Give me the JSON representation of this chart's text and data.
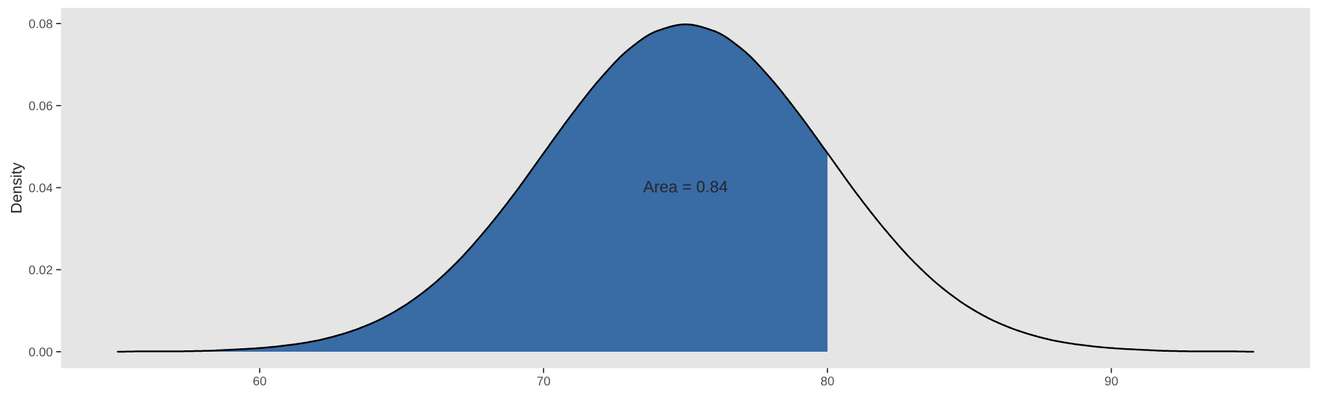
{
  "chart_data": {
    "type": "line",
    "ylabel": "Density",
    "series": [
      {
        "type": "area",
        "color": "#396ba5",
        "x": [
          55,
          56,
          57,
          58,
          59,
          60,
          61,
          62,
          63,
          64,
          65,
          66,
          67,
          68,
          69,
          70,
          71,
          72,
          73,
          74,
          75,
          76,
          77,
          78,
          79,
          80
        ],
        "values": [
          0.0,
          0.0001,
          0.0001,
          0.0002,
          0.0005,
          0.0009,
          0.0016,
          0.0027,
          0.0045,
          0.0071,
          0.0108,
          0.0158,
          0.0222,
          0.03,
          0.0388,
          0.0484,
          0.0579,
          0.0666,
          0.0737,
          0.0782,
          0.0798,
          0.0782,
          0.0737,
          0.0666,
          0.0579,
          0.0484
        ]
      },
      {
        "color": "#000000",
        "x": [
          55,
          56,
          57,
          58,
          59,
          60,
          61,
          62,
          63,
          64,
          65,
          66,
          67,
          68,
          69,
          70,
          71,
          72,
          73,
          74,
          75,
          76,
          77,
          78,
          79,
          80,
          81,
          82,
          83,
          84,
          85,
          86,
          87,
          88,
          89,
          90,
          91,
          92,
          93,
          94,
          95
        ],
        "values": [
          0.0,
          0.0001,
          0.0001,
          0.0002,
          0.0005,
          0.0009,
          0.0016,
          0.0027,
          0.0045,
          0.0071,
          0.0108,
          0.0158,
          0.0222,
          0.03,
          0.0388,
          0.0484,
          0.0579,
          0.0666,
          0.0737,
          0.0782,
          0.0798,
          0.0782,
          0.0737,
          0.0666,
          0.0579,
          0.0484,
          0.0388,
          0.03,
          0.0222,
          0.0158,
          0.0108,
          0.0071,
          0.0045,
          0.0027,
          0.0016,
          0.0009,
          0.0005,
          0.0002,
          0.0001,
          0.0001,
          0.0
        ]
      }
    ],
    "annotations": [
      "Area = 0.84"
    ],
    "xlim": [
      53,
      97
    ],
    "xticks": [
      60,
      70,
      80,
      90
    ],
    "ylim": [
      -0.004,
      0.0838
    ],
    "yticks": [
      {
        "value": 0,
        "label": "0.00"
      },
      {
        "value": 0.02,
        "label": "0.02"
      },
      {
        "value": 0.04,
        "label": "0.04"
      },
      {
        "value": 0.06,
        "label": "0.06"
      },
      {
        "value": 0.08,
        "label": "0.08"
      }
    ],
    "grid": false,
    "legend": false
  }
}
